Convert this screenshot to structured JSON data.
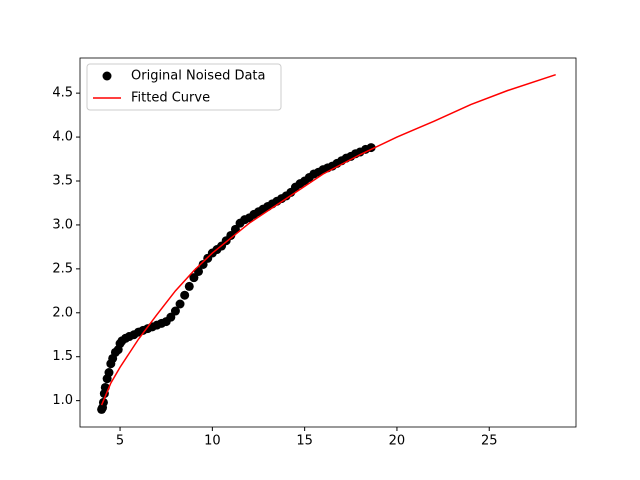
{
  "chart_data": {
    "type": "scatter",
    "xlim": [
      2.83,
      29.7
    ],
    "ylim": [
      0.7,
      4.9
    ],
    "xticks": [
      5,
      10,
      15,
      20,
      25
    ],
    "yticks": [
      {
        "value": 1.0,
        "label": "1.0"
      },
      1.5,
      {
        "value": 2.0,
        "label": "2.0"
      },
      2.5,
      {
        "value": 3.0,
        "label": "3.0"
      },
      3.5,
      {
        "value": 4.0,
        "label": "4.0"
      },
      4.5
    ],
    "legend": "upper left",
    "series": [
      {
        "name": "Original Noised Data",
        "color": "#000000",
        "style": "points",
        "x": [
          4.0,
          4.05,
          4.1,
          4.15,
          4.2,
          4.3,
          4.4,
          4.5,
          4.6,
          4.75,
          4.9,
          5.0,
          5.1,
          5.3,
          5.5,
          5.75,
          6.0,
          6.25,
          6.5,
          6.75,
          7.0,
          7.25,
          7.5,
          7.75,
          8.0,
          8.25,
          8.5,
          8.75,
          9.0,
          9.25,
          9.5,
          9.75,
          10.0,
          10.25,
          10.5,
          10.75,
          11.0,
          11.25,
          11.5,
          11.75,
          12.0,
          12.25,
          12.5,
          12.75,
          13.0,
          13.25,
          13.5,
          13.75,
          14.0,
          14.25,
          14.5,
          14.75,
          15.0,
          15.25,
          15.5,
          15.75,
          16.0,
          16.25,
          16.5,
          16.75,
          17.0,
          17.25,
          17.5,
          17.75,
          18.0,
          18.3,
          18.6
        ],
        "y": [
          0.9,
          0.92,
          0.98,
          1.08,
          1.15,
          1.25,
          1.32,
          1.42,
          1.48,
          1.55,
          1.58,
          1.65,
          1.68,
          1.71,
          1.73,
          1.75,
          1.78,
          1.8,
          1.82,
          1.84,
          1.86,
          1.88,
          1.9,
          1.95,
          2.02,
          2.1,
          2.2,
          2.3,
          2.4,
          2.47,
          2.55,
          2.62,
          2.68,
          2.72,
          2.76,
          2.82,
          2.88,
          2.95,
          3.02,
          3.06,
          3.08,
          3.12,
          3.15,
          3.18,
          3.21,
          3.24,
          3.27,
          3.3,
          3.33,
          3.37,
          3.43,
          3.47,
          3.5,
          3.54,
          3.58,
          3.6,
          3.63,
          3.65,
          3.67,
          3.7,
          3.73,
          3.76,
          3.78,
          3.81,
          3.83,
          3.86,
          3.88
        ]
      },
      {
        "name": "Fitted Curve",
        "color": "#ff0000",
        "style": "line",
        "x": [
          4.0,
          4.5,
          5.0,
          6.0,
          7.0,
          8.0,
          9.0,
          10.0,
          12.0,
          14.0,
          16.0,
          18.0,
          20.0,
          22.0,
          24.0,
          26.0,
          28.6
        ],
        "y": [
          0.95,
          1.2,
          1.38,
          1.7,
          1.98,
          2.25,
          2.48,
          2.68,
          3.02,
          3.3,
          3.58,
          3.8,
          4.0,
          4.18,
          4.37,
          4.53,
          4.71
        ]
      }
    ]
  }
}
